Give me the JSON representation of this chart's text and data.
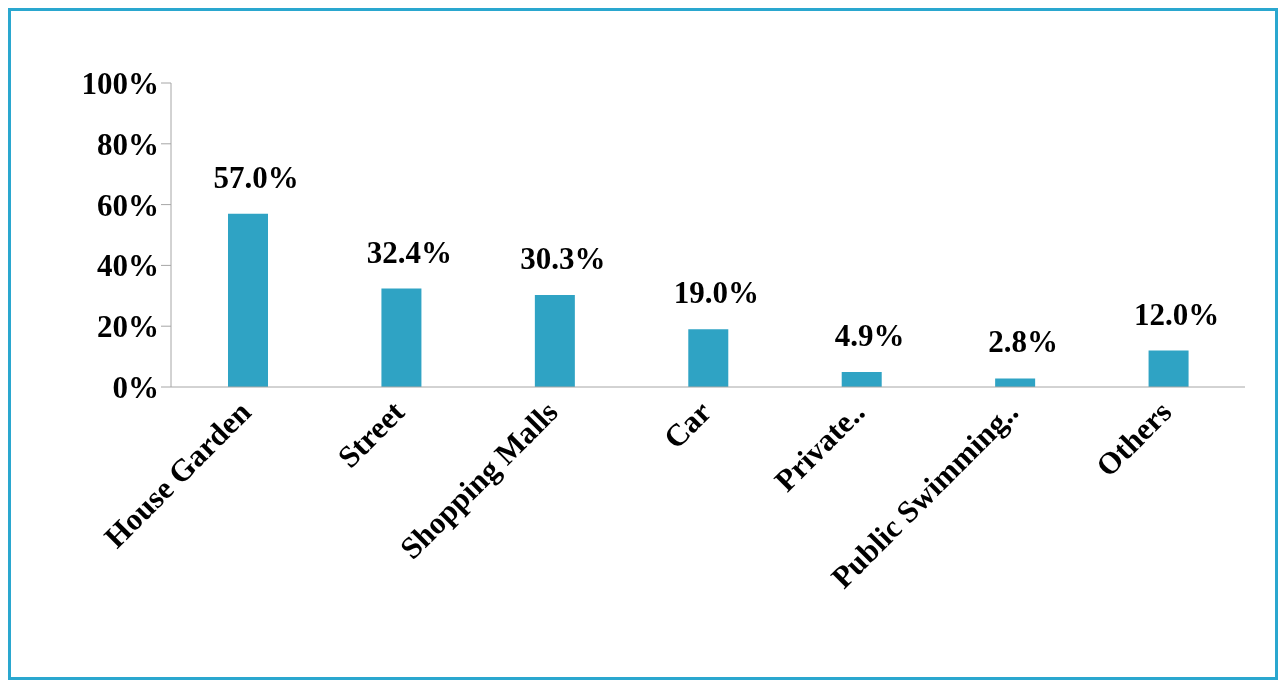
{
  "chart_data": {
    "type": "bar",
    "categories": [
      "House Garden",
      "Street",
      "Shopping Malls",
      "Car",
      "Private..",
      "Public Swimming..",
      "Others"
    ],
    "values": [
      57.0,
      32.4,
      30.3,
      19.0,
      4.9,
      2.8,
      12.0
    ],
    "value_labels": [
      "57.0%",
      "32.4%",
      "30.3%",
      "19.0%",
      "4.9%",
      "2.8%",
      "12.0%"
    ],
    "color": "#2fa3c4",
    "ylim": [
      0,
      100
    ],
    "yticks": [
      {
        "value": 0,
        "label": "0%"
      },
      {
        "value": 20,
        "label": "20%"
      },
      {
        "value": 40,
        "label": "40%"
      },
      {
        "value": 60,
        "label": "60%"
      },
      {
        "value": 80,
        "label": "80%"
      },
      {
        "value": 100,
        "label": "100%"
      }
    ]
  }
}
